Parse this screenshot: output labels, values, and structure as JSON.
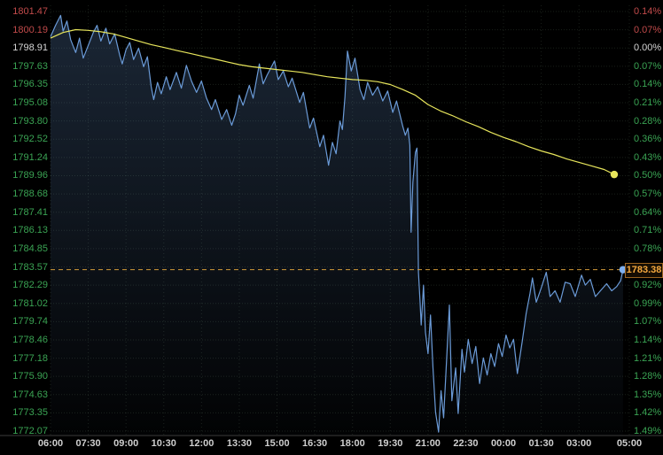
{
  "chart_data": {
    "type": "line",
    "title": "",
    "x_unit": "hours_since_06:00",
    "x_range": [
      0,
      23
    ],
    "ylim": [
      1772.07,
      1801.47
    ],
    "grid": true,
    "legend": "none",
    "prev_close": 1798.91,
    "last_price": 1783.38,
    "y_axis_left": {
      "labels": [
        "1801.47",
        "1800.19",
        "1798.91",
        "1797.63",
        "1796.35",
        "1795.08",
        "1793.80",
        "1792.52",
        "1791.24",
        "1789.96",
        "1788.68",
        "1787.41",
        "1786.13",
        "1784.85",
        "1783.57",
        "1782.29",
        "1781.02",
        "1779.74",
        "1778.46",
        "1777.18",
        "1775.90",
        "1774.63",
        "1773.35",
        "1772.07"
      ]
    },
    "y_axis_right": {
      "labels": [
        "0.14%",
        "0.07%",
        "0.00%",
        "0.07%",
        "0.14%",
        "0.21%",
        "0.28%",
        "0.36%",
        "0.43%",
        "0.50%",
        "0.57%",
        "0.64%",
        "0.71%",
        "0.78%",
        "0.85%",
        "0.92%",
        "0.99%",
        "1.07%",
        "1.14%",
        "1.21%",
        "1.28%",
        "1.35%",
        "1.42%",
        "1.49%"
      ]
    },
    "x_axis": {
      "labels": [
        "06:00",
        "07:30",
        "09:00",
        "10:30",
        "12:00",
        "13:30",
        "15:00",
        "16:30",
        "18:00",
        "19:30",
        "21:00",
        "22:30",
        "00:00",
        "01:30",
        "03:00",
        "05:00"
      ],
      "positions_h": [
        0,
        1.5,
        3,
        4.5,
        6,
        7.5,
        9,
        10.5,
        12,
        13.5,
        15,
        16.5,
        18,
        19.5,
        21,
        23
      ]
    },
    "current_price_line": {
      "value": 1783.38,
      "label": "1783.38",
      "color": "#d29a3a"
    },
    "series": [
      {
        "name": "price",
        "color": "#6b9bd8",
        "style": "line-area",
        "end_dot": {
          "x": 22.75,
          "value": 1783.38,
          "color": "#7fb0f0"
        },
        "points": [
          [
            0,
            1799.7
          ],
          [
            0.2,
            1800.5
          ],
          [
            0.4,
            1801.2
          ],
          [
            0.5,
            1800.1
          ],
          [
            0.65,
            1800.8
          ],
          [
            0.8,
            1799.5
          ],
          [
            1.0,
            1798.6
          ],
          [
            1.15,
            1799.6
          ],
          [
            1.3,
            1798.2
          ],
          [
            1.5,
            1799.1
          ],
          [
            1.7,
            1800.0
          ],
          [
            1.85,
            1800.5
          ],
          [
            2.0,
            1799.4
          ],
          [
            2.2,
            1800.3
          ],
          [
            2.35,
            1799.2
          ],
          [
            2.55,
            1799.9
          ],
          [
            2.75,
            1798.4
          ],
          [
            2.85,
            1797.8
          ],
          [
            3.0,
            1798.8
          ],
          [
            3.15,
            1799.3
          ],
          [
            3.3,
            1798.1
          ],
          [
            3.5,
            1798.9
          ],
          [
            3.7,
            1797.6
          ],
          [
            3.85,
            1798.3
          ],
          [
            4.0,
            1796.2
          ],
          [
            4.1,
            1795.3
          ],
          [
            4.25,
            1796.5
          ],
          [
            4.4,
            1795.7
          ],
          [
            4.6,
            1796.9
          ],
          [
            4.75,
            1796.0
          ],
          [
            5.0,
            1797.2
          ],
          [
            5.2,
            1796.1
          ],
          [
            5.4,
            1797.7
          ],
          [
            5.6,
            1796.6
          ],
          [
            5.8,
            1795.8
          ],
          [
            6.0,
            1796.6
          ],
          [
            6.2,
            1795.4
          ],
          [
            6.4,
            1794.6
          ],
          [
            6.55,
            1795.3
          ],
          [
            6.8,
            1793.9
          ],
          [
            7.0,
            1794.6
          ],
          [
            7.2,
            1793.5
          ],
          [
            7.35,
            1794.3
          ],
          [
            7.5,
            1795.6
          ],
          [
            7.65,
            1794.9
          ],
          [
            7.9,
            1796.3
          ],
          [
            8.05,
            1795.4
          ],
          [
            8.3,
            1797.8
          ],
          [
            8.45,
            1796.4
          ],
          [
            8.6,
            1797.0
          ],
          [
            8.9,
            1798.0
          ],
          [
            9.05,
            1796.7
          ],
          [
            9.25,
            1797.3
          ],
          [
            9.45,
            1796.2
          ],
          [
            9.6,
            1796.8
          ],
          [
            9.9,
            1795.1
          ],
          [
            10.05,
            1795.8
          ],
          [
            10.3,
            1793.3
          ],
          [
            10.45,
            1794.0
          ],
          [
            10.7,
            1792.0
          ],
          [
            10.85,
            1792.8
          ],
          [
            11.05,
            1790.7
          ],
          [
            11.2,
            1792.3
          ],
          [
            11.35,
            1791.5
          ],
          [
            11.5,
            1793.8
          ],
          [
            11.6,
            1793.2
          ],
          [
            11.7,
            1795.5
          ],
          [
            11.8,
            1798.7
          ],
          [
            11.95,
            1797.3
          ],
          [
            12.1,
            1798.2
          ],
          [
            12.3,
            1796.0
          ],
          [
            12.45,
            1795.3
          ],
          [
            12.6,
            1796.5
          ],
          [
            12.8,
            1795.6
          ],
          [
            13.0,
            1796.2
          ],
          [
            13.2,
            1795.2
          ],
          [
            13.4,
            1795.9
          ],
          [
            13.6,
            1794.4
          ],
          [
            13.75,
            1795.2
          ],
          [
            14.0,
            1793.4
          ],
          [
            14.1,
            1792.8
          ],
          [
            14.2,
            1793.3
          ],
          [
            14.28,
            1792.1
          ],
          [
            14.33,
            1786.0
          ],
          [
            14.4,
            1789.5
          ],
          [
            14.5,
            1791.6
          ],
          [
            14.56,
            1791.9
          ],
          [
            14.62,
            1783.2
          ],
          [
            14.68,
            1781.3
          ],
          [
            14.73,
            1779.5
          ],
          [
            14.82,
            1782.3
          ],
          [
            14.9,
            1779.0
          ],
          [
            15.0,
            1777.5
          ],
          [
            15.1,
            1780.2
          ],
          [
            15.2,
            1776.5
          ],
          [
            15.3,
            1773.4
          ],
          [
            15.42,
            1772.0
          ],
          [
            15.52,
            1774.9
          ],
          [
            15.62,
            1773.0
          ],
          [
            15.72,
            1776.4
          ],
          [
            15.85,
            1780.9
          ],
          [
            15.95,
            1774.2
          ],
          [
            16.1,
            1776.5
          ],
          [
            16.2,
            1773.3
          ],
          [
            16.35,
            1777.8
          ],
          [
            16.45,
            1776.2
          ],
          [
            16.6,
            1778.5
          ],
          [
            16.75,
            1776.8
          ],
          [
            16.9,
            1778.0
          ],
          [
            17.05,
            1775.4
          ],
          [
            17.2,
            1777.2
          ],
          [
            17.35,
            1776.0
          ],
          [
            17.5,
            1777.5
          ],
          [
            17.65,
            1776.6
          ],
          [
            17.8,
            1778.2
          ],
          [
            17.95,
            1777.3
          ],
          [
            18.1,
            1778.8
          ],
          [
            18.25,
            1777.9
          ],
          [
            18.4,
            1778.5
          ],
          [
            18.55,
            1776.1
          ],
          [
            18.75,
            1778.4
          ],
          [
            18.9,
            1780.3
          ],
          [
            19.05,
            1781.7
          ],
          [
            19.15,
            1782.8
          ],
          [
            19.3,
            1781.1
          ],
          [
            19.5,
            1782.1
          ],
          [
            19.7,
            1783.2
          ],
          [
            19.85,
            1781.5
          ],
          [
            20.05,
            1781.9
          ],
          [
            20.25,
            1781.1
          ],
          [
            20.45,
            1782.5
          ],
          [
            20.65,
            1782.4
          ],
          [
            20.85,
            1781.5
          ],
          [
            21.1,
            1783.0
          ],
          [
            21.25,
            1782.3
          ],
          [
            21.45,
            1782.7
          ],
          [
            21.65,
            1781.5
          ],
          [
            21.9,
            1782.0
          ],
          [
            22.1,
            1782.4
          ],
          [
            22.3,
            1781.9
          ],
          [
            22.5,
            1782.2
          ],
          [
            22.65,
            1782.6
          ],
          [
            22.75,
            1783.38
          ]
        ]
      },
      {
        "name": "moving-average",
        "color": "#e8e65c",
        "style": "line",
        "end_dot": {
          "x": 22.4,
          "value": 1790.05,
          "color": "#e8e65c"
        },
        "points": [
          [
            0,
            1799.6
          ],
          [
            0.5,
            1800.0
          ],
          [
            1,
            1800.2
          ],
          [
            1.5,
            1800.15
          ],
          [
            2,
            1800.05
          ],
          [
            2.5,
            1799.9
          ],
          [
            3,
            1799.65
          ],
          [
            3.5,
            1799.4
          ],
          [
            4,
            1799.15
          ],
          [
            4.5,
            1798.95
          ],
          [
            5,
            1798.75
          ],
          [
            5.5,
            1798.55
          ],
          [
            6,
            1798.35
          ],
          [
            6.5,
            1798.15
          ],
          [
            7,
            1797.95
          ],
          [
            7.5,
            1797.75
          ],
          [
            8,
            1797.6
          ],
          [
            8.5,
            1797.5
          ],
          [
            9,
            1797.4
          ],
          [
            9.5,
            1797.3
          ],
          [
            10,
            1797.2
          ],
          [
            10.5,
            1797.05
          ],
          [
            11,
            1796.9
          ],
          [
            11.5,
            1796.8
          ],
          [
            12,
            1796.7
          ],
          [
            12.5,
            1796.65
          ],
          [
            13,
            1796.55
          ],
          [
            13.5,
            1796.35
          ],
          [
            14,
            1796.0
          ],
          [
            14.5,
            1795.6
          ],
          [
            15,
            1794.95
          ],
          [
            15.5,
            1794.5
          ],
          [
            16,
            1794.15
          ],
          [
            16.5,
            1793.75
          ],
          [
            17,
            1793.4
          ],
          [
            17.5,
            1793.0
          ],
          [
            18,
            1792.65
          ],
          [
            18.5,
            1792.35
          ],
          [
            19,
            1792.0
          ],
          [
            19.5,
            1791.7
          ],
          [
            20,
            1791.45
          ],
          [
            20.5,
            1791.15
          ],
          [
            21,
            1790.9
          ],
          [
            21.5,
            1790.65
          ],
          [
            22,
            1790.4
          ],
          [
            22.4,
            1790.05
          ]
        ]
      }
    ],
    "colors": {
      "background": "#000000",
      "up_label": "#c04a4a",
      "down_label": "#3aa353",
      "flat_label": "#d5d5d5",
      "time_label": "#cfcfcf",
      "grid": "rgba(140,170,140,0.18)",
      "axis_line": "#3c3c3c",
      "price_line": "#6b9bd8",
      "price_fill_top": "rgba(96,138,192,0.28)",
      "price_fill_bottom": "rgba(96,138,192,0.02)",
      "ma_line": "#e8e65c",
      "current_price_dash": "#d29a3a",
      "tag_text": "#f5a93f",
      "tag_border": "#9a621f"
    }
  }
}
